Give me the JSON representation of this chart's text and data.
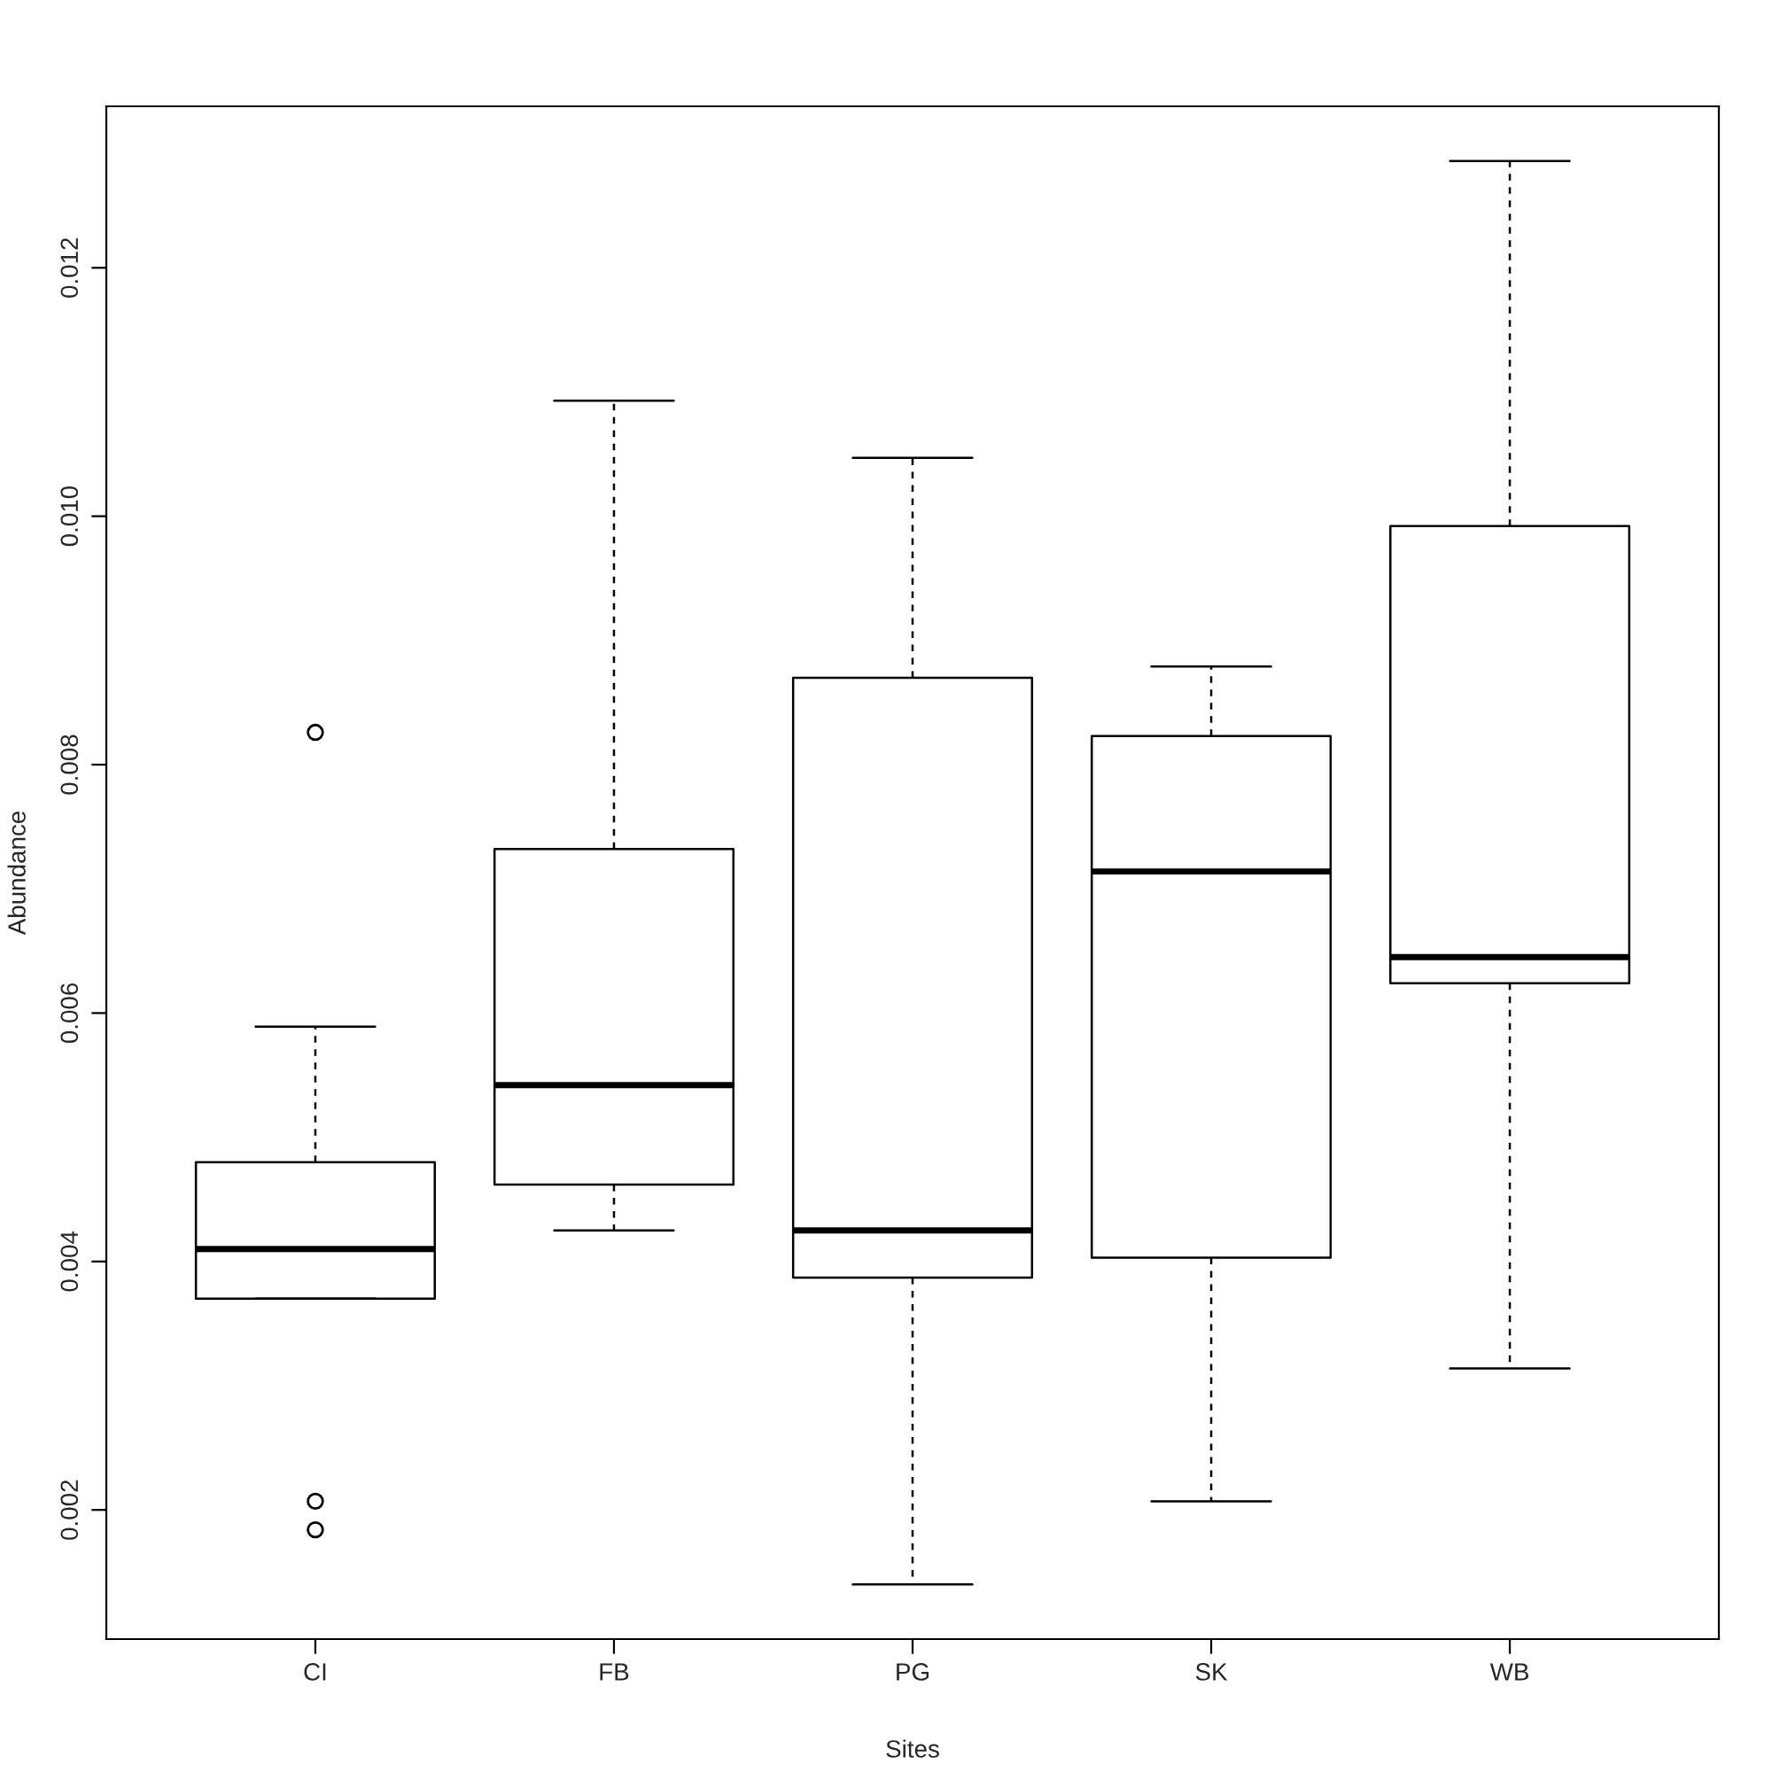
{
  "chart_data": {
    "type": "box",
    "xlabel": "Sites",
    "ylabel": "Abundance",
    "categories": [
      "CI",
      "FB",
      "PG",
      "SK",
      "WB"
    ],
    "boxes": [
      {
        "low": 0.0037,
        "q1": 0.0037,
        "median": 0.0041,
        "q3": 0.0048,
        "high": 0.00589,
        "outliers": [
          0.00826,
          0.00207,
          0.00184
        ]
      },
      {
        "low": 0.00425,
        "q1": 0.00462,
        "median": 0.00542,
        "q3": 0.00732,
        "high": 0.01093
      },
      {
        "low": 0.0014,
        "q1": 0.00387,
        "median": 0.00425,
        "q3": 0.0087,
        "high": 0.01047
      },
      {
        "low": 0.00207,
        "q1": 0.00403,
        "median": 0.00714,
        "q3": 0.00823,
        "high": 0.00879
      },
      {
        "low": 0.00314,
        "q1": 0.00624,
        "median": 0.00645,
        "q3": 0.00992,
        "high": 0.01286
      }
    ],
    "ylim": [
      0.00096,
      0.0133
    ],
    "yticks": [
      {
        "value": 0.002,
        "label": "0.002"
      },
      {
        "value": 0.004,
        "label": "0.004"
      },
      {
        "value": 0.006,
        "label": "0.006"
      },
      {
        "value": 0.008,
        "label": "0.008"
      },
      {
        "value": 0.01,
        "label": "0.010"
      },
      {
        "value": 0.012,
        "label": "0.012"
      }
    ]
  }
}
